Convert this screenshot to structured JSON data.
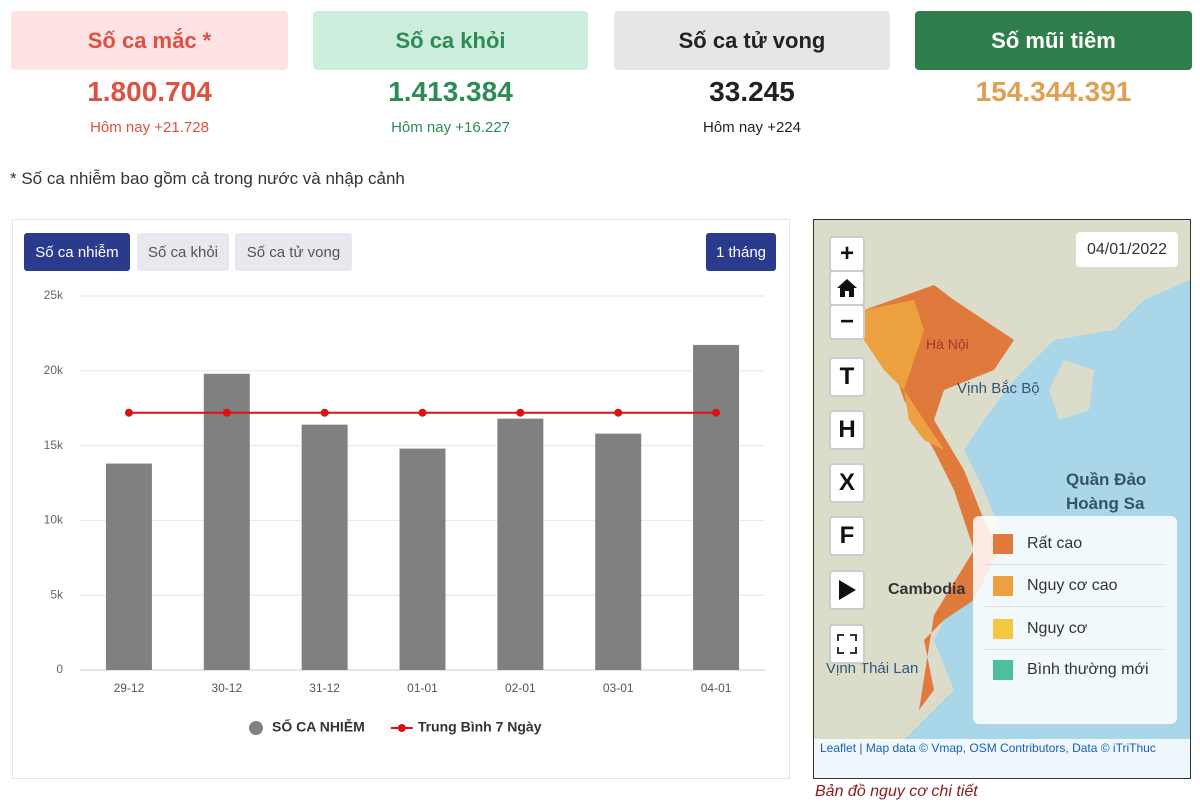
{
  "stats": [
    {
      "title": "Số ca mắc *",
      "value": "1.800.704",
      "today": "Hôm nay +21.728"
    },
    {
      "title": "Số ca khỏi",
      "value": "1.413.384",
      "today": "Hôm nay +16.227"
    },
    {
      "title": "Số ca tử vong",
      "value": "33.245",
      "today": "Hôm nay +224"
    },
    {
      "title": "Số mũi tiêm",
      "value": "154.344.391"
    }
  ],
  "note": "* Số ca nhiễm bao gồm cả trong nước và nhập cảnh",
  "tabs": [
    "Số ca nhiễm",
    "Số ca khỏi",
    "Số ca tử vong"
  ],
  "range_button": "1 tháng",
  "chart_data": {
    "type": "bar",
    "categories": [
      "29-12",
      "30-12",
      "31-12",
      "01-01",
      "02-01",
      "03-01",
      "04-01"
    ],
    "series": [
      {
        "name": "SỐ CA NHIỄM",
        "color": "#808080",
        "type": "bar",
        "values": [
          13800,
          19800,
          16400,
          14800,
          16800,
          15800,
          21728
        ]
      },
      {
        "name": "Trung Bình 7 Ngày",
        "color": "#e01010",
        "type": "line",
        "values": [
          17200,
          17200,
          17200,
          17200,
          17200,
          17200,
          17200
        ]
      }
    ],
    "ylim": [
      0,
      25000
    ],
    "yticks": [
      0,
      {
        "value": 5000,
        "label": "5k"
      },
      {
        "value": 10000,
        "label": "10k"
      },
      {
        "value": 15000,
        "label": "15k"
      },
      {
        "value": 20000,
        "label": "20k"
      },
      {
        "value": 25000,
        "label": "25k"
      }
    ],
    "grid": true,
    "legend": "bottom"
  },
  "map": {
    "date": "04/01/2022",
    "controls": [
      "+",
      "−",
      "T",
      "H",
      "X",
      "F"
    ],
    "labels": [
      "Hà Nội",
      "Vịnh Bắc Bộ",
      "Quần Đảo",
      "Hoàng Sa",
      "Cambodia",
      "Vịnh Thái Lan"
    ],
    "legend": [
      "Rất cao",
      "Nguy cơ cao",
      "Nguy cơ",
      "Bình thường mới"
    ],
    "attribution": "Leaflet | Map data © Vmap, OSM Contributors, Data © iTriThuc",
    "caption": "Bản đồ nguy cơ chi tiết"
  }
}
